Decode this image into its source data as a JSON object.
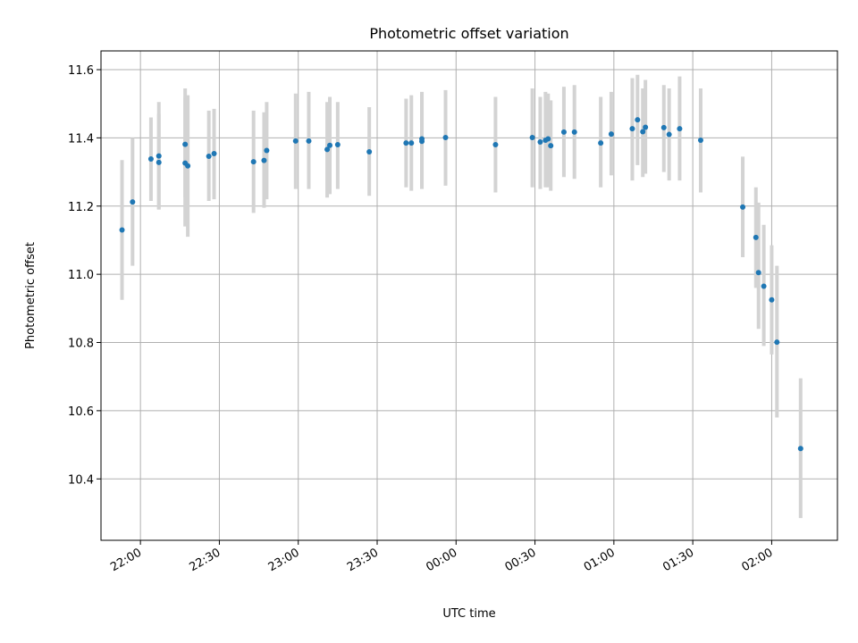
{
  "chart_data": {
    "type": "scatter",
    "title": "Photometric offset variation",
    "xlabel": "UTC time",
    "ylabel": "Photometric offset",
    "x_tick_labels": [
      "22:00",
      "22:30",
      "23:00",
      "23:30",
      "00:00",
      "00:30",
      "01:00",
      "01:30",
      "02:00"
    ],
    "y_tick_labels": [
      "10.4",
      "10.6",
      "10.8",
      "11.0",
      "11.2",
      "11.4",
      "11.6"
    ],
    "xlim": [
      "21:45",
      "02:25"
    ],
    "ylim": [
      10.22,
      11.655
    ],
    "y_ticks": [
      10.4,
      10.6,
      10.8,
      11.0,
      11.2,
      11.4,
      11.6
    ],
    "grid": true,
    "point_color": "#1f77b4",
    "errorbar_color": "#d3d3d3",
    "points": [
      {
        "x": "21:53",
        "y": 11.13,
        "low": 10.925,
        "high": 11.335
      },
      {
        "x": "21:57",
        "y": 11.212,
        "low": 11.025,
        "high": 11.4
      },
      {
        "x": "22:04",
        "y": 11.338,
        "low": 11.215,
        "high": 11.46
      },
      {
        "x": "22:07",
        "y": 11.347,
        "low": 11.19,
        "high": 11.505
      },
      {
        "x": "22:07",
        "y": 11.328,
        "low": 11.19,
        "high": 11.47
      },
      {
        "x": "22:17",
        "y": 11.381,
        "low": 11.225,
        "high": 11.545
      },
      {
        "x": "22:17",
        "y": 11.326,
        "low": 11.14,
        "high": 11.52
      },
      {
        "x": "22:18",
        "y": 11.318,
        "low": 11.11,
        "high": 11.525
      },
      {
        "x": "22:26",
        "y": 11.346,
        "low": 11.215,
        "high": 11.48
      },
      {
        "x": "22:28",
        "y": 11.354,
        "low": 11.22,
        "high": 11.485
      },
      {
        "x": "22:43",
        "y": 11.33,
        "low": 11.18,
        "high": 11.48
      },
      {
        "x": "22:47",
        "y": 11.334,
        "low": 11.195,
        "high": 11.475
      },
      {
        "x": "22:48",
        "y": 11.363,
        "low": 11.22,
        "high": 11.505
      },
      {
        "x": "22:59",
        "y": 11.391,
        "low": 11.25,
        "high": 11.53
      },
      {
        "x": "23:04",
        "y": 11.391,
        "low": 11.25,
        "high": 11.535
      },
      {
        "x": "23:11",
        "y": 11.366,
        "low": 11.225,
        "high": 11.505
      },
      {
        "x": "23:12",
        "y": 11.378,
        "low": 11.235,
        "high": 11.52
      },
      {
        "x": "23:15",
        "y": 11.38,
        "low": 11.25,
        "high": 11.505
      },
      {
        "x": "23:27",
        "y": 11.359,
        "low": 11.23,
        "high": 11.49
      },
      {
        "x": "23:41",
        "y": 11.385,
        "low": 11.255,
        "high": 11.515
      },
      {
        "x": "23:43",
        "y": 11.385,
        "low": 11.245,
        "high": 11.525
      },
      {
        "x": "23:47",
        "y": 11.39,
        "low": 11.25,
        "high": 11.53
      },
      {
        "x": "23:47",
        "y": 11.397,
        "low": 11.26,
        "high": 11.535
      },
      {
        "x": "23:56",
        "y": 11.401,
        "low": 11.26,
        "high": 11.54
      },
      {
        "x": "00:15",
        "y": 11.38,
        "low": 11.24,
        "high": 11.52
      },
      {
        "x": "00:29",
        "y": 11.401,
        "low": 11.255,
        "high": 11.545
      },
      {
        "x": "00:32",
        "y": 11.388,
        "low": 11.25,
        "high": 11.52
      },
      {
        "x": "00:34",
        "y": 11.393,
        "low": 11.255,
        "high": 11.535
      },
      {
        "x": "00:35",
        "y": 11.397,
        "low": 11.255,
        "high": 11.53
      },
      {
        "x": "00:36",
        "y": 11.377,
        "low": 11.245,
        "high": 11.51
      },
      {
        "x": "00:41",
        "y": 11.417,
        "low": 11.285,
        "high": 11.55
      },
      {
        "x": "00:45",
        "y": 11.417,
        "low": 11.28,
        "high": 11.555
      },
      {
        "x": "00:55",
        "y": 11.385,
        "low": 11.255,
        "high": 11.52
      },
      {
        "x": "00:59",
        "y": 11.411,
        "low": 11.29,
        "high": 11.535
      },
      {
        "x": "01:07",
        "y": 11.427,
        "low": 11.275,
        "high": 11.575
      },
      {
        "x": "01:09",
        "y": 11.453,
        "low": 11.32,
        "high": 11.585
      },
      {
        "x": "01:11",
        "y": 11.418,
        "low": 11.285,
        "high": 11.545
      },
      {
        "x": "01:12",
        "y": 11.431,
        "low": 11.295,
        "high": 11.57
      },
      {
        "x": "01:19",
        "y": 11.43,
        "low": 11.3,
        "high": 11.555
      },
      {
        "x": "01:21",
        "y": 11.41,
        "low": 11.275,
        "high": 11.545
      },
      {
        "x": "01:25",
        "y": 11.427,
        "low": 11.275,
        "high": 11.58
      },
      {
        "x": "01:33",
        "y": 11.393,
        "low": 11.24,
        "high": 11.545
      },
      {
        "x": "01:49",
        "y": 11.197,
        "low": 11.05,
        "high": 11.345
      },
      {
        "x": "01:54",
        "y": 11.108,
        "low": 10.96,
        "high": 11.255
      },
      {
        "x": "01:55",
        "y": 11.005,
        "low": 10.84,
        "high": 11.21
      },
      {
        "x": "01:57",
        "y": 10.965,
        "low": 10.79,
        "high": 11.145
      },
      {
        "x": "02:00",
        "y": 10.925,
        "low": 10.765,
        "high": 11.085
      },
      {
        "x": "02:02",
        "y": 10.801,
        "low": 10.58,
        "high": 11.025
      },
      {
        "x": "02:11",
        "y": 10.489,
        "low": 10.285,
        "high": 10.695
      }
    ]
  }
}
